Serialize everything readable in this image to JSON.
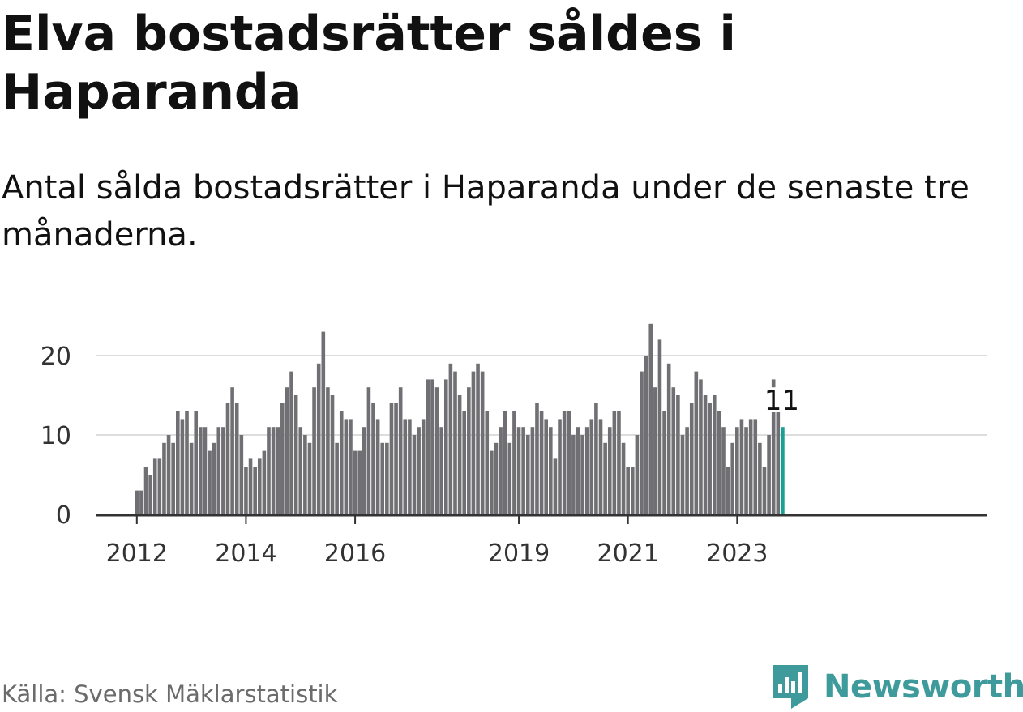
{
  "title": "Elva bostadsrätter såldes i Haparanda",
  "subtitle": "Antal sålda bostadsrätter i Haparanda under de senaste tre månaderna.",
  "source": "Källa: Svensk Mäklarstatistik",
  "brand": {
    "name": "Newsworthy",
    "logo_icon": "newsworthy-chart-logo-icon"
  },
  "colors": {
    "bar": "#707074",
    "highlight": "#1a9e96",
    "grid": "#dddddd",
    "axis": "#333333",
    "brand": "#3f9b9b"
  },
  "chart_data": {
    "type": "bar",
    "title": "Antal sålda bostadsrätter i Haparanda",
    "xlabel": "",
    "ylabel": "",
    "ylim": [
      0,
      25
    ],
    "yticks": [
      0,
      10,
      20
    ],
    "grid": true,
    "start_year": 2012,
    "start_month": 1,
    "xtick_labels": [
      "2012",
      "2014",
      "2016",
      "2019",
      "2021",
      "2023"
    ],
    "highlight_label": "11",
    "values": [
      3,
      3,
      6,
      5,
      7,
      7,
      9,
      10,
      9,
      13,
      12,
      13,
      9,
      13,
      11,
      11,
      8,
      9,
      11,
      11,
      14,
      16,
      14,
      10,
      6,
      7,
      6,
      7,
      8,
      11,
      11,
      11,
      14,
      16,
      18,
      15,
      11,
      10,
      9,
      16,
      19,
      23,
      16,
      15,
      9,
      13,
      12,
      12,
      8,
      8,
      11,
      16,
      14,
      12,
      9,
      9,
      14,
      14,
      16,
      12,
      12,
      10,
      11,
      12,
      17,
      17,
      16,
      11,
      17,
      19,
      18,
      15,
      13,
      16,
      18,
      19,
      18,
      13,
      8,
      9,
      11,
      13,
      9,
      13,
      11,
      11,
      10,
      11,
      14,
      13,
      12,
      11,
      7,
      12,
      13,
      13,
      10,
      11,
      10,
      11,
      12,
      14,
      12,
      9,
      11,
      13,
      13,
      9,
      6,
      6,
      10,
      18,
      20,
      24,
      16,
      22,
      13,
      19,
      16,
      15,
      10,
      11,
      14,
      18,
      17,
      15,
      14,
      15,
      13,
      11,
      6,
      9,
      11,
      12,
      11,
      12,
      12,
      9,
      6,
      10,
      17,
      13,
      11
    ]
  }
}
